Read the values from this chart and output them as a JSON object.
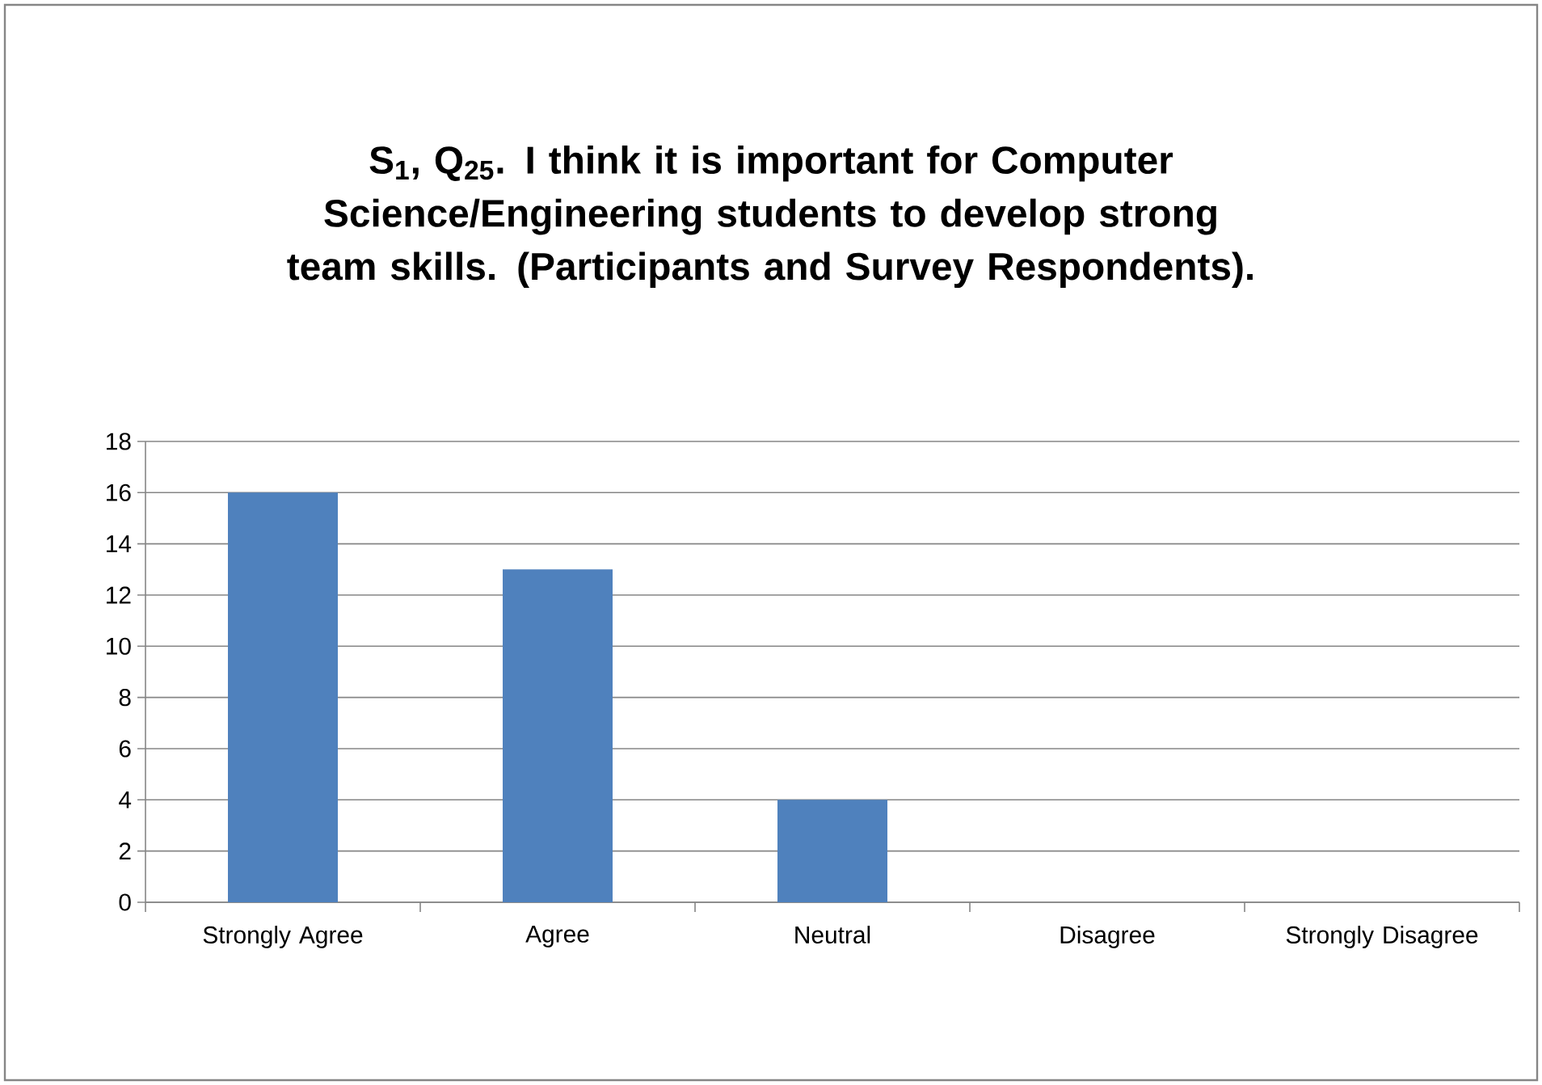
{
  "chart_data": {
    "type": "bar",
    "title": "S$_{1}$, Q$_{25}$. I think it is important for Computer Science/Engineering students to develop strong team skills. (Participants and Survey Respondents).",
    "categories": [
      "Strongly Agree",
      "Agree",
      "Neutral",
      "Disagree",
      "Strongly Disagree"
    ],
    "values": [
      16,
      13,
      4,
      0,
      0
    ],
    "color": "#4f81bd",
    "ylim": [
      0,
      18
    ],
    "yticks": [
      0,
      2,
      4,
      6,
      8,
      10,
      12,
      14,
      16,
      18
    ],
    "grid": "y"
  }
}
